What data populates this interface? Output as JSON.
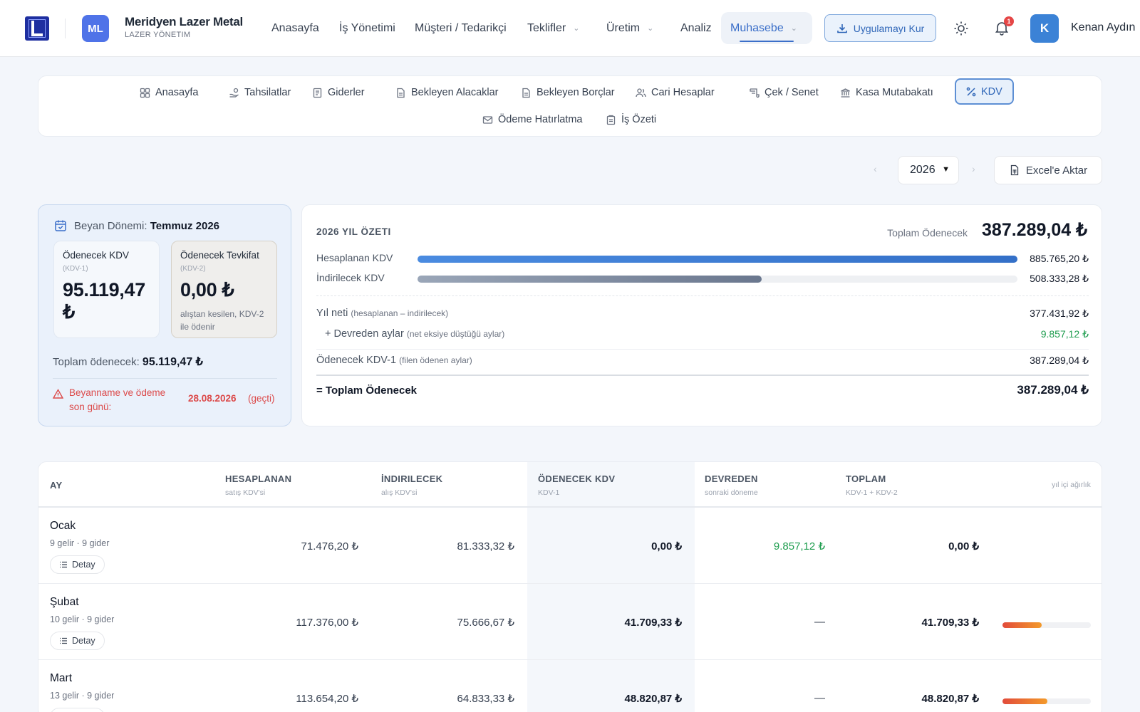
{
  "header": {
    "company_initials": "ML",
    "company_name": "Meridyen Lazer Metal",
    "company_sub": "LAZER YÖNETIM",
    "nav": [
      {
        "label": "Anasayfa"
      },
      {
        "label": "İş Yönetimi"
      },
      {
        "label": "Müşteri / Tedarikçi"
      },
      {
        "label": "Teklifler"
      },
      {
        "label": "Üretim"
      },
      {
        "label": "Analiz"
      },
      {
        "label": "Muhasebe"
      }
    ],
    "install_label": "Uygulamayı Kur",
    "notification_count": "1",
    "user_initial": "K",
    "user_name": "Kenan Aydın"
  },
  "subtabs": [
    {
      "label": "Anasayfa",
      "icon": "grid-icon"
    },
    {
      "label": "Tahsilatlar",
      "icon": "hand-coins-icon"
    },
    {
      "label": "Giderler",
      "icon": "receipt-icon"
    },
    {
      "label": "Bekleyen Alacaklar",
      "icon": "document-icon"
    },
    {
      "label": "Bekleyen Borçlar",
      "icon": "document-icon"
    },
    {
      "label": "Cari Hesaplar",
      "icon": "users-icon"
    },
    {
      "label": "Çek / Senet",
      "icon": "scroll-icon"
    },
    {
      "label": "Kasa Mutabakatı",
      "icon": "bank-icon"
    },
    {
      "label": "KDV",
      "icon": "percent-icon"
    },
    {
      "label": "Ödeme Hatırlatma",
      "icon": "mail-icon"
    },
    {
      "label": "İş Özeti",
      "icon": "clipboard-icon"
    }
  ],
  "toolbar": {
    "year": "2026",
    "excel_label": "Excel'e Aktar"
  },
  "period": {
    "label": "Beyan Dönemi:",
    "value": "Temmuz 2026",
    "kdv1": {
      "label": "Ödenecek KDV",
      "code": "(KDV-1)",
      "amount": "95.119,47 ₺"
    },
    "kdv2": {
      "label": "Ödenecek Tevkifat",
      "code": "(KDV-2)",
      "amount": "0,00 ₺",
      "note": "alıştan kesilen, KDV-2 ile ödenir"
    },
    "total_label": "Toplam ödenecek:",
    "total_value": "95.119,47 ₺",
    "deadline_label": "Beyanname ve ödeme son günü:",
    "deadline_date": "28.08.2026",
    "deadline_status": "(geçti)"
  },
  "summary": {
    "title": "2026 YIL ÖZETI",
    "total_label": "Toplam Ödenecek",
    "total_value": "387.289,04 ₺",
    "bars": [
      {
        "label": "Hesaplanan KDV",
        "value": "885.765,20 ₺",
        "fraction": 1.0,
        "color": "#3b7fd9"
      },
      {
        "label": "İndirilecek KDV",
        "value": "508.333,28 ₺",
        "fraction": 0.574,
        "color": "#7d8aa3"
      }
    ],
    "net_label": "Yıl neti",
    "net_hint": "(hesaplanan – indirilecek)",
    "net_value": "377.431,92 ₺",
    "carry_label": "+ Devreden aylar",
    "carry_hint": "(net eksiye düştüğü aylar)",
    "carry_value": "9.857,12 ₺",
    "kdv1_label": "Ödenecek KDV-1",
    "kdv1_hint": "(filen ödenen aylar)",
    "kdv1_value": "387.289,04 ₺",
    "final_label": "= Toplam Ödenecek",
    "final_value": "387.289,04 ₺"
  },
  "table": {
    "columns": [
      {
        "label": "AY",
        "sub": ""
      },
      {
        "label": "HESAPLANAN",
        "sub": "satış KDV'si"
      },
      {
        "label": "İNDIRILECEK",
        "sub": "alış KDV'si"
      },
      {
        "label": "ÖDENECEK KDV",
        "sub": "KDV-1"
      },
      {
        "label": "DEVREDEN",
        "sub": "sonraki döneme"
      },
      {
        "label": "TOPLAM",
        "sub": "KDV-1 + KDV-2"
      },
      {
        "label": "",
        "sub": "yıl içi ağırlık"
      }
    ],
    "detail_label": "Detay",
    "rows": [
      {
        "month": "Ocak",
        "meta": "9 gelir · 9 gider",
        "hesaplanan": "71.476,20 ₺",
        "indirilecek": "81.333,32 ₺",
        "odenecek": "0,00 ₺",
        "devreden": "9.857,12 ₺",
        "toplam": "0,00 ₺",
        "weight": 0
      },
      {
        "month": "Şubat",
        "meta": "10 gelir · 9 gider",
        "hesaplanan": "117.376,00 ₺",
        "indirilecek": "75.666,67 ₺",
        "odenecek": "41.709,33 ₺",
        "devreden": "—",
        "toplam": "41.709,33 ₺",
        "weight": 0.44
      },
      {
        "month": "Mart",
        "meta": "13 gelir · 9 gider",
        "hesaplanan": "113.654,20 ₺",
        "indirilecek": "64.833,33 ₺",
        "odenecek": "48.820,87 ₺",
        "devreden": "—",
        "toplam": "48.820,87 ₺",
        "weight": 0.51
      }
    ]
  }
}
